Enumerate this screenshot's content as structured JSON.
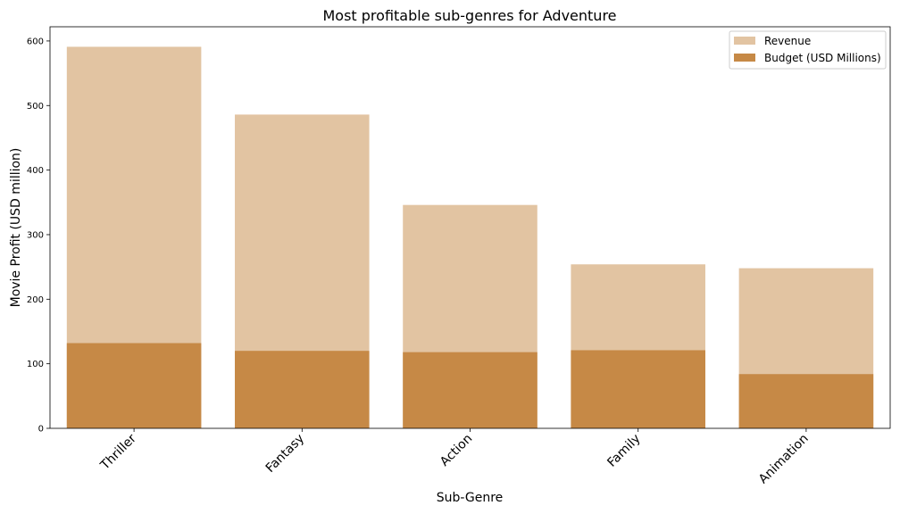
{
  "chart_data": {
    "type": "bar",
    "title": "Most profitable sub-genres for Adventure",
    "xlabel": "Sub-Genre",
    "ylabel": "Movie Profit (USD million)",
    "categories": [
      "Thriller",
      "Fantasy",
      "Action",
      "Family",
      "Animation"
    ],
    "series": [
      {
        "name": "Revenue",
        "values": [
          591,
          486,
          346,
          254,
          248
        ],
        "color": "#e2c4a2"
      },
      {
        "name": "Budget (USD Millions)",
        "values": [
          132,
          120,
          118,
          121,
          84
        ],
        "color": "#c68946"
      }
    ],
    "ylim": [
      0,
      622
    ],
    "yticks": [
      0,
      100,
      200,
      300,
      400,
      500,
      600
    ],
    "overlaid": true,
    "grid": false,
    "legend_position": "top-right"
  }
}
